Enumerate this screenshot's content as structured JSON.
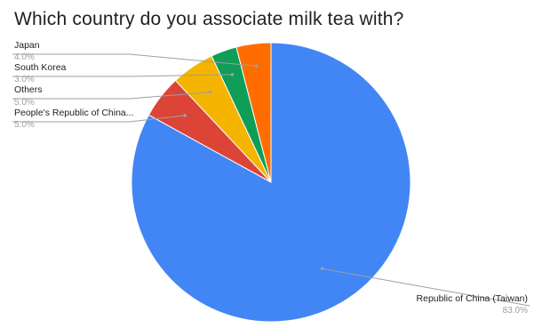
{
  "chart_data": {
    "type": "pie",
    "title": "Which country do you associate milk tea with?",
    "slices": [
      {
        "label": "Republic of China (Taiwan)",
        "value": 83.0,
        "pct_text": "83.0%",
        "color": "#4285f4"
      },
      {
        "label": "People's Republic of China...",
        "value": 5.0,
        "pct_text": "5.0%",
        "color": "#db4437"
      },
      {
        "label": "Others",
        "value": 5.0,
        "pct_text": "5.0%",
        "color": "#f4b400"
      },
      {
        "label": "South Korea",
        "value": 3.0,
        "pct_text": "3.0%",
        "color": "#0f9d58"
      },
      {
        "label": "Japan",
        "value": 4.0,
        "pct_text": "4.0%",
        "color": "#ff6d01"
      }
    ],
    "legend_placement": "callouts"
  }
}
